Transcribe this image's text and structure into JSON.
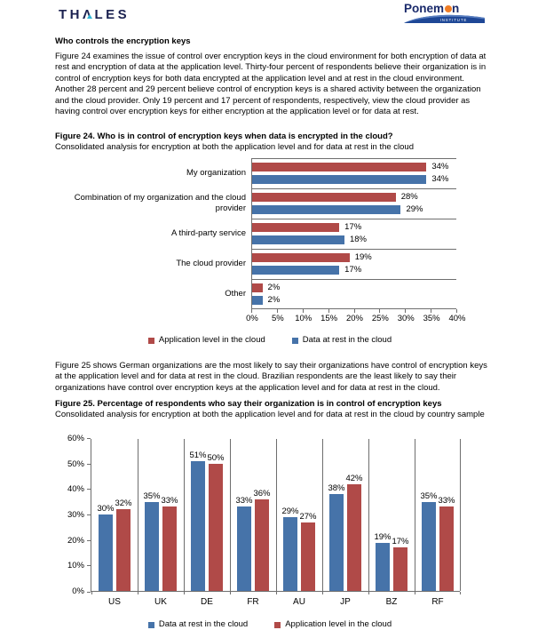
{
  "header": {
    "thales_pre": "TH",
    "thales_a": "Λ",
    "thales_post": "LES",
    "thales_full": "THALES",
    "ponemon_name_pre": "Ponem",
    "ponemon_name_post": "n",
    "ponemon_subtext": "INSTITUTE"
  },
  "content": {
    "section_heading": "Who controls the encryption keys",
    "paragraph1": "Figure 24 examines the issue of control over encryption keys in the cloud environment for both encryption of data at rest and encryption of data at the application level.  Thirty-four percent of respondents believe their organization is in control of encryption keys for both data encrypted at the application level and at rest in the cloud environment. Another 28 percent and 29 percent believe control of encryption keys is a shared activity between the organization and the cloud provider.  Only 19 percent and 17 percent of respondents, respectively, view the cloud provider as having control over encryption keys for either encryption at the application level or for data at rest.",
    "paragraph2": "Figure 25 shows German organizations are the most likely to say their organizations have control of encryption keys at the application level and for data at rest in the cloud. Brazilian respondents are the least likely to say their organizations have control over encryption keys at the application level and for data at rest in the cloud.",
    "figure24_title": "Figure 24. Who is in control of encryption keys when data is encrypted in the cloud?",
    "figure24_subtitle": "Consolidated analysis for encryption at both the application level and for data at rest in the cloud",
    "figure25_title": "Figure 25. Percentage of respondents who say their organization is in control of encryption keys",
    "figure25_subtitle": "Consolidated analysis for encryption at both the application level and for data at rest in the cloud by country sample"
  },
  "colors": {
    "application_level_red": "#b04a48",
    "data_at_rest_blue": "#4673a9",
    "axis_gray": "#6e6e6e",
    "logo_navy": "#1b2150",
    "logo_orange": "#f07d26",
    "swoosh_blue": "#1e4796"
  },
  "chart_data": [
    {
      "type": "bar",
      "orientation": "horizontal",
      "figure": "Figure 24",
      "title": "Figure 24. Who is in control of encryption keys when data is encrypted in the cloud?",
      "subtitle": "Consolidated analysis for encryption at both the application level and for data at rest in the cloud",
      "categories": [
        "My organization",
        "Combination of my organization and the cloud provider",
        "A third-party service",
        "The cloud provider",
        "Other"
      ],
      "series": [
        {
          "name": "Application level in the cloud",
          "color": "#b04a48",
          "values": [
            34,
            28,
            17,
            19,
            2
          ]
        },
        {
          "name": "Data at rest in the cloud",
          "color": "#4673a9",
          "values": [
            34,
            29,
            18,
            17,
            2
          ]
        }
      ],
      "value_labels": [
        [
          "34%",
          "28%",
          "17%",
          "19%",
          "2%"
        ],
        [
          "34%",
          "29%",
          "18%",
          "17%",
          "2%"
        ]
      ],
      "x_ticks": [
        "0%",
        "5%",
        "10%",
        "15%",
        "20%",
        "25%",
        "30%",
        "35%",
        "40%"
      ],
      "x_tick_values": [
        0,
        5,
        10,
        15,
        20,
        25,
        30,
        35,
        40
      ],
      "xlim": [
        0,
        40
      ],
      "legend_position": "bottom",
      "grid": "category separator lines only"
    },
    {
      "type": "bar",
      "orientation": "vertical",
      "figure": "Figure 25",
      "title": "Figure 25. Percentage of respondents who say their organization is in control of encryption keys",
      "subtitle": "Consolidated analysis for encryption at both the application level and for data at rest in the cloud by country sample",
      "categories": [
        "US",
        "UK",
        "DE",
        "FR",
        "AU",
        "JP",
        "BZ",
        "RF"
      ],
      "series": [
        {
          "name": "Data at rest in the cloud",
          "color": "#4673a9",
          "values": [
            30,
            35,
            51,
            33,
            29,
            38,
            19,
            35
          ]
        },
        {
          "name": "Application level in the cloud",
          "color": "#b04a48",
          "values": [
            32,
            33,
            50,
            36,
            27,
            42,
            17,
            33
          ]
        }
      ],
      "value_labels": [
        [
          "30%",
          "35%",
          "51%",
          "33%",
          "29%",
          "38%",
          "19%",
          "35%"
        ],
        [
          "32%",
          "33%",
          "50%",
          "36%",
          "27%",
          "42%",
          "17%",
          "33%"
        ]
      ],
      "y_ticks": [
        "0%",
        "10%",
        "20%",
        "30%",
        "40%",
        "50%",
        "60%"
      ],
      "y_tick_values": [
        0,
        10,
        20,
        30,
        40,
        50,
        60
      ],
      "ylim": [
        0,
        60
      ],
      "legend_position": "bottom",
      "grid": "category separator lines only"
    }
  ]
}
